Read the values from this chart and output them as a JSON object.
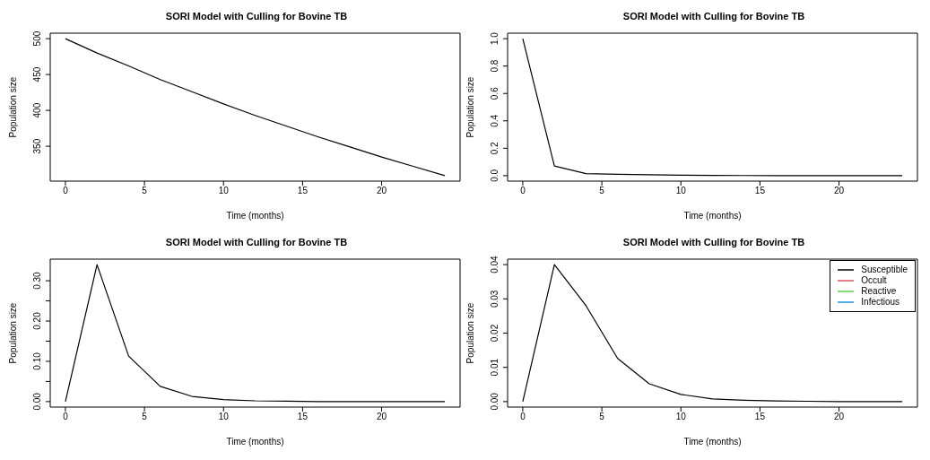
{
  "chart_data": [
    {
      "type": "line",
      "title": "SORI Model with Culling for Bovine TB",
      "xlabel": "Time (months)",
      "ylabel": "Population size",
      "x": [
        0,
        2,
        4,
        6,
        8,
        10,
        12,
        14,
        16,
        18,
        20,
        22,
        24
      ],
      "series": [
        {
          "color": "#000000",
          "values": [
            500,
            480,
            462,
            443,
            426,
            409,
            393,
            378,
            363,
            349,
            335,
            322,
            309
          ]
        }
      ],
      "xlim": [
        -0.96,
        24.96
      ],
      "xticks": [
        0,
        5,
        10,
        15,
        20
      ],
      "ylim": [
        301.4,
        507.6
      ],
      "yticks": [
        350,
        400,
        450,
        500
      ],
      "grid": false,
      "legend": false,
      "marker": "none",
      "line_style": "solid"
    },
    {
      "type": "line",
      "title": "SORI Model with Culling for Bovine TB",
      "xlabel": "Time (months)",
      "ylabel": "Population size",
      "x": [
        0,
        2,
        4,
        6,
        8,
        10,
        12,
        14,
        16,
        18,
        20,
        22,
        24
      ],
      "series": [
        {
          "color": "#000000",
          "values": [
            1,
            0.07,
            0.015,
            0.01,
            0.006,
            0.003,
            0.002,
            0.001,
            0,
            0,
            0,
            0,
            0
          ]
        }
      ],
      "xlim": [
        -0.96,
        24.96
      ],
      "xticks": [
        0,
        5,
        10,
        15,
        20
      ],
      "ylim": [
        -0.04,
        1.04
      ],
      "yticks": [
        {
          "value": 0,
          "label": "0.0"
        },
        {
          "value": 0.2,
          "label": "0.2"
        },
        {
          "value": 0.4,
          "label": "0.4"
        },
        {
          "value": 0.6,
          "label": "0.6"
        },
        {
          "value": 0.8,
          "label": "0.8"
        },
        {
          "value": 1,
          "label": "1.0"
        }
      ],
      "grid": false,
      "legend": false,
      "marker": "none",
      "line_style": "solid"
    },
    {
      "type": "line",
      "title": "SORI Model with Culling for Bovine TB",
      "xlabel": "Time (months)",
      "ylabel": "Population size",
      "x": [
        0,
        2,
        4,
        6,
        8,
        10,
        12,
        14,
        16,
        18,
        20,
        22,
        24
      ],
      "series": [
        {
          "color": "#000000",
          "values": [
            0,
            0.34,
            0.113,
            0.038,
            0.013,
            0.005,
            0.002,
            0.001,
            0,
            0,
            0,
            0,
            0
          ]
        }
      ],
      "xlim": [
        -0.96,
        24.96
      ],
      "xticks": [
        0,
        5,
        10,
        15,
        20
      ],
      "ylim": [
        -0.0136,
        0.3536
      ],
      "yticks": [
        {
          "value": 0,
          "label": "0.00"
        },
        {
          "value": 0.05,
          "label": null
        },
        {
          "value": 0.1,
          "label": "0.10"
        },
        {
          "value": 0.15,
          "label": null
        },
        {
          "value": 0.2,
          "label": "0.20"
        },
        {
          "value": 0.25,
          "label": null
        },
        {
          "value": 0.3,
          "label": "0.30"
        }
      ],
      "grid": false,
      "legend": false,
      "marker": "none",
      "line_style": "solid"
    },
    {
      "type": "line",
      "title": "SORI Model with Culling for Bovine TB",
      "xlabel": "Time (months)",
      "ylabel": "Population size",
      "x": [
        0,
        2,
        4,
        6,
        8,
        10,
        12,
        14,
        16,
        18,
        20,
        22,
        24
      ],
      "series": [
        {
          "name": "Susceptible",
          "color": "#000000",
          "values": [
            0,
            0.04,
            0.028,
            0.0126,
            0.0052,
            0.0021,
            0.0008,
            0.0004,
            0.0002,
            0.0001,
            0,
            0,
            0
          ]
        },
        {
          "name": "Occult",
          "color": "#df536b",
          "values": [
            null,
            null,
            null,
            null,
            null,
            null,
            null,
            null,
            null,
            null,
            null,
            null,
            null
          ]
        },
        {
          "name": "Reactive",
          "color": "#61d04f",
          "values": [
            null,
            null,
            null,
            null,
            null,
            null,
            null,
            null,
            null,
            null,
            null,
            null,
            null
          ]
        },
        {
          "name": "Infectious",
          "color": "#2297e6",
          "values": [
            null,
            null,
            null,
            null,
            null,
            null,
            null,
            null,
            null,
            null,
            null,
            null,
            null
          ]
        }
      ],
      "xlim": [
        -0.96,
        24.96
      ],
      "xticks": [
        0,
        5,
        10,
        15,
        20
      ],
      "ylim": [
        -0.0016,
        0.0416
      ],
      "yticks": [
        {
          "value": 0,
          "label": "0.00"
        },
        {
          "value": 0.01,
          "label": "0.01"
        },
        {
          "value": 0.02,
          "label": "0.02"
        },
        {
          "value": 0.03,
          "label": "0.03"
        },
        {
          "value": 0.04,
          "label": "0.04"
        }
      ],
      "grid": false,
      "legend": "top right",
      "marker": "none",
      "line_style": "solid"
    }
  ]
}
